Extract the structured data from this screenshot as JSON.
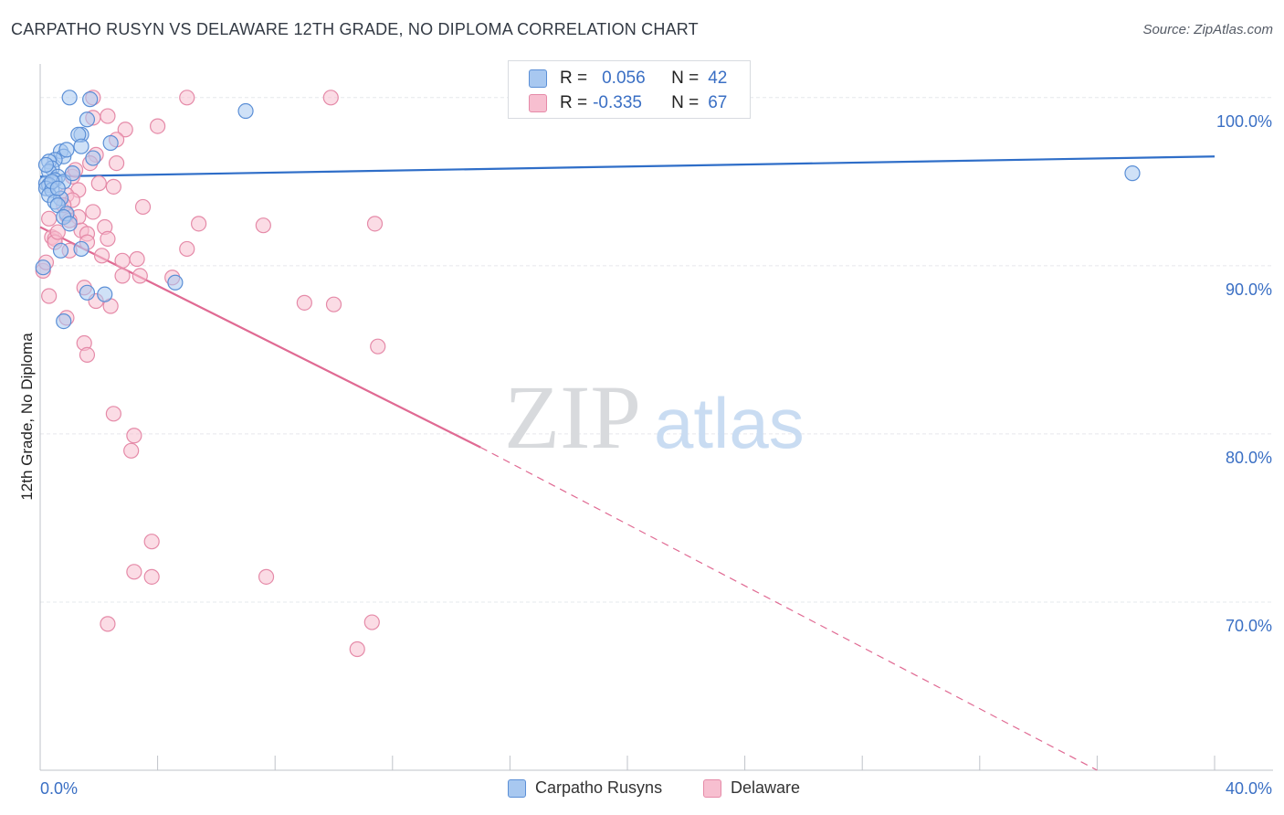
{
  "title": "CARPATHO RUSYN VS DELAWARE 12TH GRADE, NO DIPLOMA CORRELATION CHART",
  "source": "Source: ZipAtlas.com",
  "watermark": {
    "zip": "ZIP",
    "atlas": "atlas"
  },
  "legend": {
    "r_label": "R =",
    "n_label": "N =",
    "series1": {
      "r": "0.056",
      "n": "42"
    },
    "series2": {
      "r": "-0.335",
      "n": "67"
    }
  },
  "colors": {
    "blue_fill": "#a8c8f0",
    "blue_stroke": "#5b8fd6",
    "blue_line": "#2f6ec8",
    "pink_fill": "#f7bfd0",
    "pink_stroke": "#e58aa8",
    "pink_line": "#e06a93",
    "axis_text": "#3a6fc4",
    "grid": "#e6e8ec"
  },
  "chart_data": {
    "type": "scatter",
    "title": "CARPATHO RUSYN VS DELAWARE 12TH GRADE, NO DIPLOMA CORRELATION CHART",
    "xlabel": "",
    "ylabel": "12th Grade, No Diploma",
    "xlim": [
      0,
      40
    ],
    "ylim": [
      60,
      102
    ],
    "x_tick_labels": [
      "0.0%",
      "40.0%"
    ],
    "y_ticks": [
      70,
      80,
      90,
      100
    ],
    "y_tick_labels": [
      "70.0%",
      "80.0%",
      "90.0%",
      "100.0%"
    ],
    "legend_position": "top-center",
    "series": [
      {
        "name": "Carpatho Rusyns",
        "r": 0.056,
        "n": 42,
        "trend": {
          "x0": 0,
          "y0": 95.3,
          "x1": 40,
          "y1": 96.5
        },
        "points": [
          [
            1.0,
            100.0
          ],
          [
            1.7,
            99.9
          ],
          [
            7.0,
            99.2
          ],
          [
            1.6,
            98.7
          ],
          [
            1.4,
            97.8
          ],
          [
            1.3,
            97.8
          ],
          [
            2.4,
            97.3
          ],
          [
            1.4,
            97.1
          ],
          [
            0.7,
            96.8
          ],
          [
            0.8,
            96.5
          ],
          [
            1.8,
            96.4
          ],
          [
            0.5,
            96.3
          ],
          [
            0.3,
            96.2
          ],
          [
            0.4,
            95.8
          ],
          [
            0.3,
            95.6
          ],
          [
            0.6,
            95.3
          ],
          [
            0.5,
            95.1
          ],
          [
            0.8,
            95.0
          ],
          [
            0.2,
            94.9
          ],
          [
            0.3,
            94.8
          ],
          [
            0.2,
            94.6
          ],
          [
            0.4,
            94.5
          ],
          [
            0.3,
            94.2
          ],
          [
            0.7,
            94.0
          ],
          [
            0.5,
            93.8
          ],
          [
            0.6,
            93.6
          ],
          [
            0.9,
            93.1
          ],
          [
            0.8,
            92.9
          ],
          [
            1.0,
            92.5
          ],
          [
            37.2,
            95.5
          ],
          [
            1.4,
            91.0
          ],
          [
            0.7,
            90.9
          ],
          [
            0.1,
            89.9
          ],
          [
            4.6,
            89.0
          ],
          [
            1.6,
            88.4
          ],
          [
            2.2,
            88.3
          ],
          [
            0.8,
            86.7
          ],
          [
            0.4,
            95.0
          ],
          [
            0.6,
            94.6
          ],
          [
            1.1,
            95.5
          ],
          [
            0.2,
            96.0
          ],
          [
            0.9,
            96.9
          ]
        ]
      },
      {
        "name": "Delaware",
        "r": -0.335,
        "n": 67,
        "trend": {
          "x0": 0,
          "y0": 92.3,
          "x1": 15.0,
          "y1": 79.2,
          "dash_x1": 36.0,
          "dash_y1": 60.0
        },
        "points": [
          [
            1.8,
            100.0
          ],
          [
            5.0,
            100.0
          ],
          [
            9.9,
            100.0
          ],
          [
            1.8,
            98.8
          ],
          [
            2.3,
            98.9
          ],
          [
            2.9,
            98.1
          ],
          [
            4.0,
            98.3
          ],
          [
            2.6,
            97.5
          ],
          [
            1.9,
            96.6
          ],
          [
            1.7,
            96.1
          ],
          [
            2.6,
            96.1
          ],
          [
            1.1,
            95.3
          ],
          [
            2.5,
            94.7
          ],
          [
            1.3,
            94.5
          ],
          [
            0.9,
            94.2
          ],
          [
            1.1,
            93.9
          ],
          [
            3.5,
            93.5
          ],
          [
            1.8,
            93.2
          ],
          [
            0.9,
            93.0
          ],
          [
            1.3,
            92.9
          ],
          [
            0.3,
            92.8
          ],
          [
            1.0,
            92.7
          ],
          [
            5.4,
            92.5
          ],
          [
            7.6,
            92.4
          ],
          [
            11.4,
            92.5
          ],
          [
            2.2,
            92.3
          ],
          [
            1.4,
            92.1
          ],
          [
            1.6,
            91.9
          ],
          [
            0.4,
            91.7
          ],
          [
            2.3,
            91.6
          ],
          [
            0.5,
            91.6
          ],
          [
            1.6,
            91.4
          ],
          [
            0.5,
            91.4
          ],
          [
            5.0,
            91.0
          ],
          [
            2.1,
            90.6
          ],
          [
            3.3,
            90.4
          ],
          [
            2.8,
            90.3
          ],
          [
            0.1,
            89.7
          ],
          [
            3.4,
            89.4
          ],
          [
            2.8,
            89.4
          ],
          [
            4.5,
            89.3
          ],
          [
            1.5,
            88.7
          ],
          [
            0.3,
            88.2
          ],
          [
            1.9,
            87.9
          ],
          [
            2.4,
            87.6
          ],
          [
            9.0,
            87.8
          ],
          [
            10.0,
            87.7
          ],
          [
            0.9,
            86.9
          ],
          [
            1.5,
            85.4
          ],
          [
            11.5,
            85.2
          ],
          [
            1.6,
            84.7
          ],
          [
            2.5,
            81.2
          ],
          [
            3.2,
            79.9
          ],
          [
            3.1,
            79.0
          ],
          [
            3.8,
            73.6
          ],
          [
            3.2,
            71.8
          ],
          [
            3.8,
            71.5
          ],
          [
            7.7,
            71.5
          ],
          [
            2.3,
            68.7
          ],
          [
            11.3,
            68.8
          ],
          [
            10.8,
            67.2
          ],
          [
            0.6,
            92.0
          ],
          [
            0.8,
            93.6
          ],
          [
            1.2,
            95.7
          ],
          [
            2.0,
            94.9
          ],
          [
            1.0,
            90.9
          ],
          [
            0.2,
            90.2
          ]
        ]
      }
    ]
  },
  "bottom_legend": {
    "series1": "Carpatho Rusyns",
    "series2": "Delaware"
  }
}
